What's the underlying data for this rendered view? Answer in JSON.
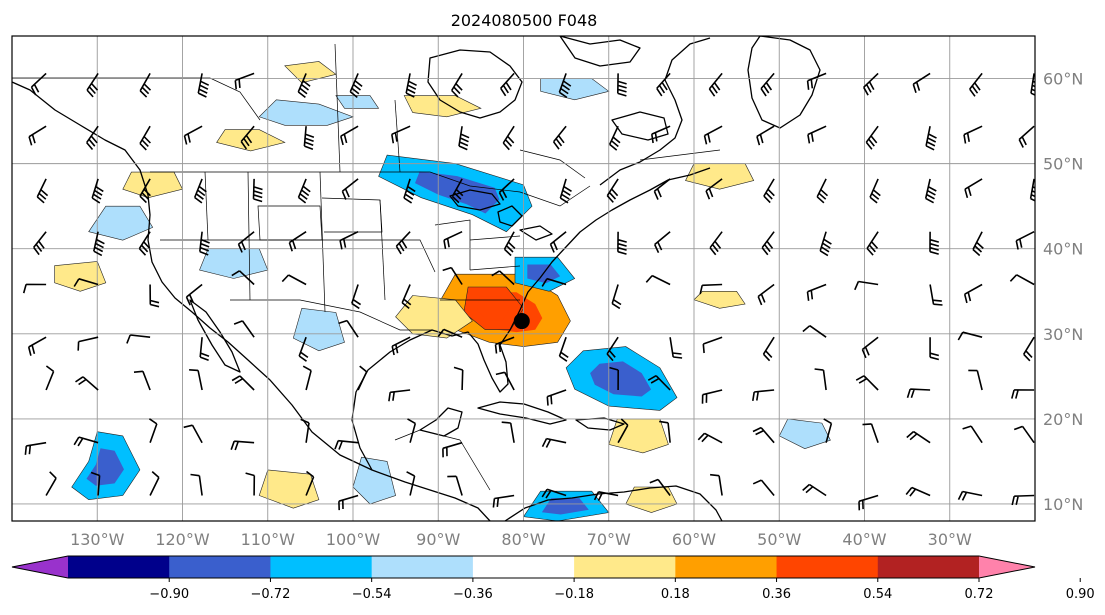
{
  "title": "2024080500 F048",
  "map": {
    "lon_range": [
      -140,
      -20
    ],
    "lat_range": [
      8,
      65
    ],
    "lon_ticks": [
      {
        "value": -130,
        "label": "130°W"
      },
      {
        "value": -120,
        "label": "120°W"
      },
      {
        "value": -110,
        "label": "110°W"
      },
      {
        "value": -100,
        "label": "100°W"
      },
      {
        "value": -90,
        "label": "90°W"
      },
      {
        "value": -80,
        "label": "80°W"
      },
      {
        "value": -70,
        "label": "70°W"
      },
      {
        "value": -60,
        "label": "60°W"
      },
      {
        "value": -50,
        "label": "50°W"
      },
      {
        "value": -40,
        "label": "40°W"
      },
      {
        "value": -30,
        "label": "30°W"
      }
    ],
    "lat_ticks": [
      {
        "value": 10,
        "label": "10°N"
      },
      {
        "value": 20,
        "label": "20°N"
      },
      {
        "value": 30,
        "label": "30°N"
      },
      {
        "value": 40,
        "label": "40°N"
      },
      {
        "value": 50,
        "label": "50°N"
      },
      {
        "value": 60,
        "label": "60°N"
      }
    ],
    "grid": true,
    "marker": {
      "lon": -80.2,
      "lat": 31.5
    }
  },
  "colorbar": {
    "levels": [
      "−0.90",
      "−0.72",
      "−0.54",
      "−0.36",
      "−0.18",
      "0.18",
      "0.36",
      "0.54",
      "0.72",
      "0.90"
    ],
    "colors": [
      "#9932cc",
      "#00008b",
      "#3a5fcd",
      "#00bfff",
      "#aedffc",
      "#ffffff",
      "#ffe98a",
      "#ff9f00",
      "#ff4500",
      "#b22222",
      "#ff82ab"
    ],
    "extend": "both"
  },
  "fields": [
    {
      "sign": "pos",
      "strength": 2,
      "pts": [
        [
          -88,
          37
        ],
        [
          -80,
          37
        ],
        [
          -76,
          34.5
        ],
        [
          -74.5,
          31.5
        ],
        [
          -76,
          29
        ],
        [
          -80,
          28.5
        ],
        [
          -84,
          29
        ],
        [
          -88,
          30.5
        ],
        [
          -90,
          33.5
        ]
      ]
    },
    {
      "sign": "pos",
      "strength": 3,
      "pts": [
        [
          -86.5,
          35.5
        ],
        [
          -82,
          35.5
        ],
        [
          -80,
          33
        ],
        [
          -81.5,
          30.5
        ],
        [
          -84.5,
          30.5
        ],
        [
          -87,
          32.5
        ]
      ]
    },
    {
      "sign": "neg",
      "strength": 2,
      "pts": [
        [
          -96,
          51
        ],
        [
          -88,
          50
        ],
        [
          -80,
          47.5
        ],
        [
          -79,
          45
        ],
        [
          -82,
          42
        ],
        [
          -86,
          44
        ],
        [
          -92,
          46
        ],
        [
          -97,
          48.5
        ]
      ]
    },
    {
      "sign": "neg",
      "strength": 1,
      "pts": [
        [
          -109,
          57.5
        ],
        [
          -104,
          57
        ],
        [
          -100,
          55.5
        ],
        [
          -103,
          54.5
        ],
        [
          -108,
          54.5
        ],
        [
          -111,
          55.5
        ]
      ]
    },
    {
      "sign": "neg",
      "strength": 2,
      "pts": [
        [
          -73,
          28
        ],
        [
          -68,
          28.5
        ],
        [
          -64,
          26
        ],
        [
          -62,
          22.5
        ],
        [
          -64,
          21
        ],
        [
          -70,
          21.5
        ],
        [
          -74,
          23.5
        ],
        [
          -75,
          26
        ]
      ]
    },
    {
      "sign": "neg",
      "strength": 2,
      "pts": [
        [
          -81,
          39
        ],
        [
          -76,
          39
        ],
        [
          -74,
          36.5
        ],
        [
          -77,
          35
        ],
        [
          -81,
          36
        ]
      ]
    },
    {
      "sign": "neg",
      "strength": 1,
      "pts": [
        [
          -129,
          45
        ],
        [
          -125,
          45
        ],
        [
          -123.5,
          42.5
        ],
        [
          -127,
          41
        ],
        [
          -131,
          42
        ]
      ]
    },
    {
      "sign": "neg",
      "strength": 1,
      "pts": [
        [
          -117,
          40
        ],
        [
          -111,
          40
        ],
        [
          -110,
          37.5
        ],
        [
          -114,
          36.5
        ],
        [
          -118,
          37.5
        ]
      ]
    },
    {
      "sign": "neg",
      "strength": 1,
      "pts": [
        [
          -106,
          33
        ],
        [
          -102,
          32.5
        ],
        [
          -101,
          29
        ],
        [
          -104,
          28
        ],
        [
          -107,
          29.5
        ]
      ]
    },
    {
      "sign": "neg",
      "strength": 2,
      "pts": [
        [
          -130,
          18.5
        ],
        [
          -127,
          18
        ],
        [
          -125,
          14
        ],
        [
          -127,
          11
        ],
        [
          -131,
          10.5
        ],
        [
          -133,
          12
        ],
        [
          -131,
          15
        ]
      ]
    },
    {
      "sign": "neg",
      "strength": 1,
      "pts": [
        [
          -99,
          15.5
        ],
        [
          -96,
          15
        ],
        [
          -95,
          11
        ],
        [
          -98,
          10
        ],
        [
          -100,
          12
        ]
      ]
    },
    {
      "sign": "neg",
      "strength": 2,
      "pts": [
        [
          -78,
          11.5
        ],
        [
          -72,
          11.5
        ],
        [
          -70,
          9
        ],
        [
          -76,
          8
        ],
        [
          -80,
          8.5
        ]
      ]
    },
    {
      "sign": "neg",
      "strength": 1,
      "pts": [
        [
          -49,
          20
        ],
        [
          -45,
          19.5
        ],
        [
          -44,
          17.5
        ],
        [
          -47,
          16.5
        ],
        [
          -50,
          18
        ]
      ]
    },
    {
      "sign": "neg",
      "strength": 1,
      "pts": [
        [
          -102,
          58
        ],
        [
          -98,
          58
        ],
        [
          -97,
          56.5
        ],
        [
          -101,
          56.5
        ]
      ]
    },
    {
      "sign": "neg",
      "strength": 1,
      "pts": [
        [
          -78,
          60
        ],
        [
          -72,
          60
        ],
        [
          -70,
          58.5
        ],
        [
          -74,
          57.5
        ],
        [
          -78,
          58.5
        ]
      ]
    },
    {
      "sign": "pos",
      "strength": 1,
      "pts": [
        [
          -108,
          61.5
        ],
        [
          -104,
          62
        ],
        [
          -102,
          60.5
        ],
        [
          -106,
          59.5
        ]
      ]
    },
    {
      "sign": "pos",
      "strength": 1,
      "pts": [
        [
          -115,
          54
        ],
        [
          -111,
          54
        ],
        [
          -108,
          52.5
        ],
        [
          -112,
          51.5
        ],
        [
          -116,
          52.5
        ]
      ]
    },
    {
      "sign": "pos",
      "strength": 1,
      "pts": [
        [
          -126,
          49
        ],
        [
          -121,
          49
        ],
        [
          -120,
          47
        ],
        [
          -124,
          46
        ],
        [
          -127,
          47
        ]
      ]
    },
    {
      "sign": "pos",
      "strength": 1,
      "pts": [
        [
          -93,
          34.5
        ],
        [
          -88,
          34
        ],
        [
          -86,
          31.5
        ],
        [
          -89,
          29.5
        ],
        [
          -93,
          30
        ],
        [
          -95,
          32
        ]
      ]
    },
    {
      "sign": "pos",
      "strength": 1,
      "pts": [
        [
          -60,
          50
        ],
        [
          -54,
          50
        ],
        [
          -53,
          48
        ],
        [
          -57,
          47
        ],
        [
          -61,
          48
        ]
      ]
    },
    {
      "sign": "pos",
      "strength": 1,
      "pts": [
        [
          -69,
          20
        ],
        [
          -64,
          20
        ],
        [
          -63,
          17
        ],
        [
          -66,
          16
        ],
        [
          -70,
          17
        ]
      ]
    },
    {
      "sign": "pos",
      "strength": 1,
      "pts": [
        [
          -67,
          12
        ],
        [
          -63,
          12
        ],
        [
          -62,
          10
        ],
        [
          -65,
          9
        ],
        [
          -68,
          10
        ]
      ]
    },
    {
      "sign": "pos",
      "strength": 1,
      "pts": [
        [
          -110,
          14
        ],
        [
          -105,
          13.5
        ],
        [
          -104,
          10.5
        ],
        [
          -107,
          9.5
        ],
        [
          -111,
          11
        ]
      ]
    },
    {
      "sign": "pos",
      "strength": 1,
      "pts": [
        [
          -135,
          38
        ],
        [
          -130,
          38.5
        ],
        [
          -129,
          36
        ],
        [
          -132,
          35
        ],
        [
          -135,
          36
        ]
      ]
    },
    {
      "sign": "pos",
      "strength": 1,
      "pts": [
        [
          -94,
          58
        ],
        [
          -88,
          58
        ],
        [
          -85,
          56.5
        ],
        [
          -89,
          55.5
        ],
        [
          -93,
          56
        ]
      ]
    },
    {
      "sign": "pos",
      "strength": 1,
      "pts": [
        [
          -59,
          35
        ],
        [
          -55,
          35
        ],
        [
          -54,
          33.5
        ],
        [
          -57,
          33
        ],
        [
          -60,
          34
        ]
      ]
    }
  ],
  "barbs": {
    "lon_start": -136,
    "lon_step": 6.1,
    "lat_start": 11,
    "lat_step": 6.2,
    "cols": 20,
    "rows": 9
  }
}
